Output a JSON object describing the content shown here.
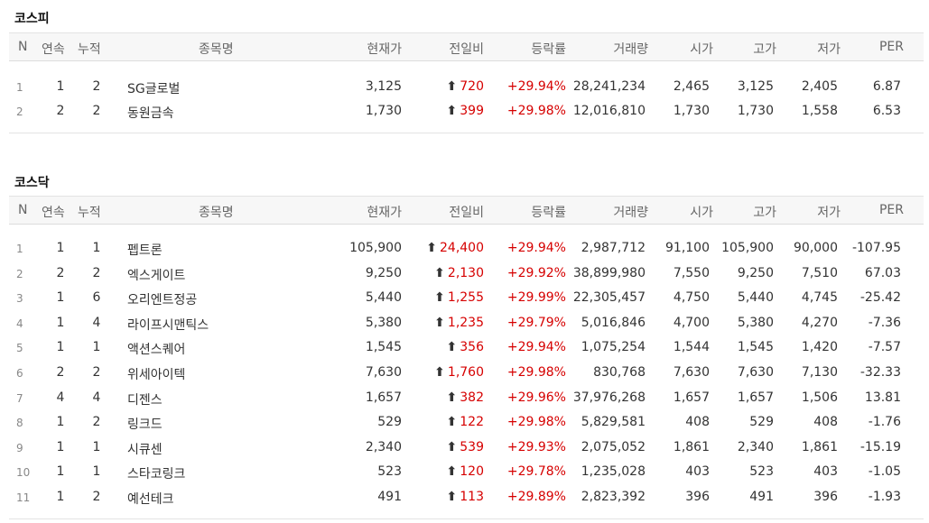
{
  "headers": {
    "n": "N",
    "consecutive": "연속",
    "cumulative": "누적",
    "name": "종목명",
    "current_price": "현재가",
    "change": "전일비",
    "rate": "등락률",
    "volume": "거래량",
    "open": "시가",
    "high": "고가",
    "low": "저가",
    "per": "PER"
  },
  "kospi": {
    "title": "코스피",
    "rows": [
      {
        "n": "1",
        "consecutive": "1",
        "cumulative": "2",
        "name": "SG글로벌",
        "price": "3,125",
        "change": "720",
        "rate": "+29.94%",
        "volume": "28,241,234",
        "open": "2,465",
        "high": "3,125",
        "low": "2,405",
        "per": "6.87"
      },
      {
        "n": "2",
        "consecutive": "2",
        "cumulative": "2",
        "name": "동원금속",
        "price": "1,730",
        "change": "399",
        "rate": "+29.98%",
        "volume": "12,016,810",
        "open": "1,730",
        "high": "1,730",
        "low": "1,558",
        "per": "6.53"
      }
    ]
  },
  "kosdaq": {
    "title": "코스닥",
    "rows": [
      {
        "n": "1",
        "consecutive": "1",
        "cumulative": "1",
        "name": "펩트론",
        "price": "105,900",
        "change": "24,400",
        "rate": "+29.94%",
        "volume": "2,987,712",
        "open": "91,100",
        "high": "105,900",
        "low": "90,000",
        "per": "-107.95"
      },
      {
        "n": "2",
        "consecutive": "2",
        "cumulative": "2",
        "name": "엑스게이트",
        "price": "9,250",
        "change": "2,130",
        "rate": "+29.92%",
        "volume": "38,899,980",
        "open": "7,550",
        "high": "9,250",
        "low": "7,510",
        "per": "67.03"
      },
      {
        "n": "3",
        "consecutive": "1",
        "cumulative": "6",
        "name": "오리엔트정공",
        "price": "5,440",
        "change": "1,255",
        "rate": "+29.99%",
        "volume": "22,305,457",
        "open": "4,750",
        "high": "5,440",
        "low": "4,745",
        "per": "-25.42"
      },
      {
        "n": "4",
        "consecutive": "1",
        "cumulative": "4",
        "name": "라이프시맨틱스",
        "price": "5,380",
        "change": "1,235",
        "rate": "+29.79%",
        "volume": "5,016,846",
        "open": "4,700",
        "high": "5,380",
        "low": "4,270",
        "per": "-7.36"
      },
      {
        "n": "5",
        "consecutive": "1",
        "cumulative": "1",
        "name": "액션스퀘어",
        "price": "1,545",
        "change": "356",
        "rate": "+29.94%",
        "volume": "1,075,254",
        "open": "1,544",
        "high": "1,545",
        "low": "1,420",
        "per": "-7.57"
      },
      {
        "n": "6",
        "consecutive": "2",
        "cumulative": "2",
        "name": "위세아이텍",
        "price": "7,630",
        "change": "1,760",
        "rate": "+29.98%",
        "volume": "830,768",
        "open": "7,630",
        "high": "7,630",
        "low": "7,130",
        "per": "-32.33"
      },
      {
        "n": "7",
        "consecutive": "4",
        "cumulative": "4",
        "name": "디젠스",
        "price": "1,657",
        "change": "382",
        "rate": "+29.96%",
        "volume": "37,976,268",
        "open": "1,657",
        "high": "1,657",
        "low": "1,506",
        "per": "13.81"
      },
      {
        "n": "8",
        "consecutive": "1",
        "cumulative": "2",
        "name": "링크드",
        "price": "529",
        "change": "122",
        "rate": "+29.98%",
        "volume": "5,829,581",
        "open": "408",
        "high": "529",
        "low": "408",
        "per": "-1.76"
      },
      {
        "n": "9",
        "consecutive": "1",
        "cumulative": "1",
        "name": "시큐센",
        "price": "2,340",
        "change": "539",
        "rate": "+29.93%",
        "volume": "2,075,052",
        "open": "1,861",
        "high": "2,340",
        "low": "1,861",
        "per": "-15.19"
      },
      {
        "n": "10",
        "consecutive": "1",
        "cumulative": "1",
        "name": "스타코링크",
        "price": "523",
        "change": "120",
        "rate": "+29.78%",
        "volume": "1,235,028",
        "open": "403",
        "high": "523",
        "low": "403",
        "per": "-1.05"
      },
      {
        "n": "11",
        "consecutive": "1",
        "cumulative": "2",
        "name": "예선테크",
        "price": "491",
        "change": "113",
        "rate": "+29.89%",
        "volume": "2,823,392",
        "open": "396",
        "high": "491",
        "low": "396",
        "per": "-1.93"
      }
    ]
  },
  "icons": {
    "up_arrow": "up-arrow-icon",
    "up_color": "#d60000"
  }
}
